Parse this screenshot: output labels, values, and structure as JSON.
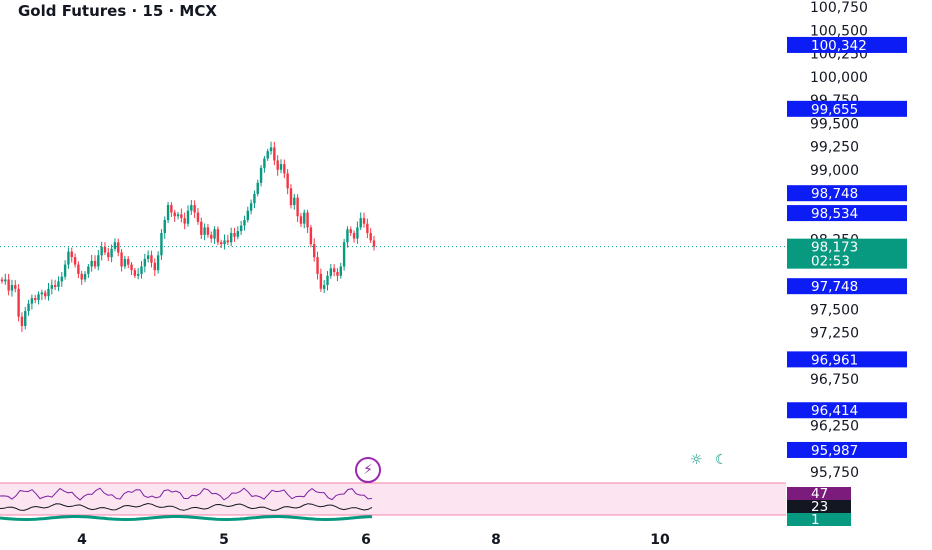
{
  "header": {
    "title": "Gold Futures · 15 · MCX"
  },
  "colors": {
    "up": "#089981",
    "down": "#f23645",
    "tag_blue": "#0c1cf5",
    "tag_green": "#089981",
    "rsi_band": "#fce4f1",
    "rsi_line": "#7b1fa2",
    "purple_tag": "#7b1c7d",
    "black_tag": "#131722"
  },
  "chart_data": {
    "type": "candlestick",
    "title": "Gold Futures · 15 · MCX",
    "y_ticks": [
      "100,750",
      "100,500",
      "100,250",
      "100,000",
      "99,750",
      "99,500",
      "99,250",
      "99,000",
      "98,250",
      "97,500",
      "97,250",
      "96,750",
      "96,250",
      "95,750"
    ],
    "y_tick_values": [
      100750,
      100500,
      100250,
      100000,
      99750,
      99500,
      99250,
      99000,
      98250,
      97500,
      97250,
      96750,
      96250,
      95750
    ],
    "ylim": [
      95700,
      100850
    ],
    "x_ticks": [
      "4",
      "5",
      "6",
      "8",
      "10"
    ],
    "price_tags": [
      {
        "label": "100,342",
        "value": 100342,
        "color": "blue"
      },
      {
        "label": "99,655",
        "value": 99655,
        "color": "blue"
      },
      {
        "label": "98,748",
        "value": 98748,
        "color": "blue"
      },
      {
        "label": "98,534",
        "value": 98534,
        "color": "blue"
      },
      {
        "label": "98,173",
        "value": 98173,
        "color": "green",
        "sub": "02:53"
      },
      {
        "label": "97,748",
        "value": 97748,
        "color": "blue"
      },
      {
        "label": "96,961",
        "value": 96961,
        "color": "blue"
      },
      {
        "label": "96,414",
        "value": 96414,
        "color": "blue"
      },
      {
        "label": "95,987",
        "value": 95987,
        "color": "blue"
      }
    ],
    "current_price": 98173,
    "candles_close": [
      97800,
      97820,
      97700,
      97760,
      97720,
      97420,
      97320,
      97480,
      97560,
      97620,
      97600,
      97660,
      97680,
      97640,
      97720,
      97760,
      97740,
      97800,
      97850,
      97980,
      98120,
      98060,
      97980,
      97880,
      97820,
      97880,
      97960,
      98020,
      97960,
      98080,
      98170,
      98110,
      98060,
      98150,
      98220,
      98110,
      97960,
      98040,
      97980,
      97920,
      97860,
      97880,
      97960,
      98040,
      98080,
      98000,
      97920,
      98080,
      98320,
      98460,
      98620,
      98540,
      98500,
      98520,
      98480,
      98420,
      98560,
      98620,
      98540,
      98440,
      98300,
      98380,
      98300,
      98260,
      98360,
      98220,
      98200,
      98240,
      98220,
      98320,
      98280,
      98340,
      98400,
      98460,
      98560,
      98640,
      98740,
      98860,
      99020,
      99120,
      99200,
      99240,
      99100,
      99000,
      99060,
      98960,
      98800,
      98620,
      98700,
      98500,
      98420,
      98540,
      98380,
      98200,
      98060,
      97880,
      97720,
      97760,
      97860,
      97940,
      97900,
      97860,
      97960,
      98220,
      98360,
      98320,
      98260,
      98380,
      98480,
      98420,
      98320,
      98240,
      98173
    ],
    "rsi": {
      "values": [
        47,
        23,
        1
      ]
    }
  },
  "rsi_labels": [
    "47",
    "23",
    "1"
  ],
  "icons": {
    "flash": "lightning-icon",
    "theme": "sun-moon-icon"
  },
  "badge": {
    "flash_glyph": "⚡"
  },
  "theme_glyphs": "☼ ☾"
}
